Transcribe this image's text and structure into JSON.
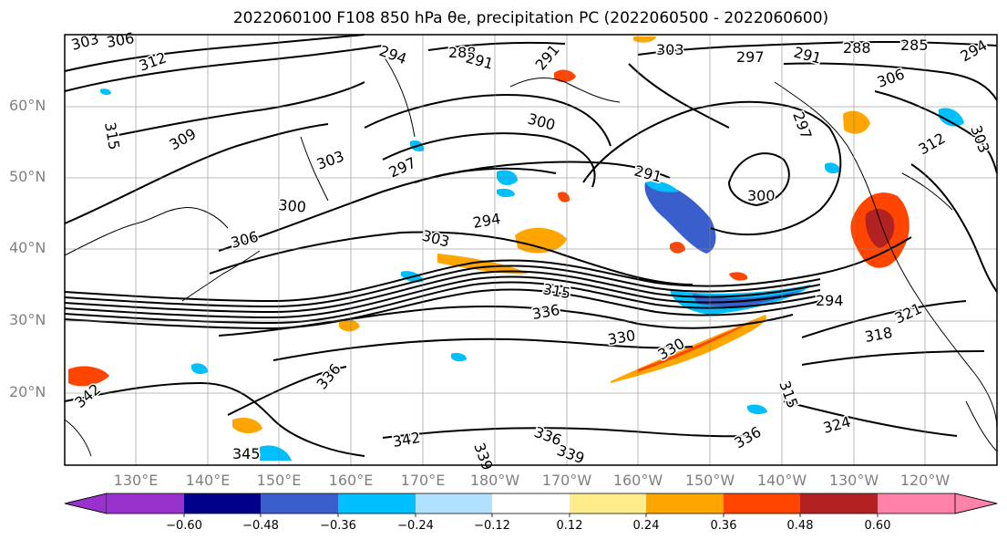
{
  "title": "2022060100 F108 850 hPa θe, precipitation PC (2022060500 - 2022060600)",
  "latitude_labels": [
    "60°N",
    "50°N",
    "40°N",
    "30°N",
    "20°N"
  ],
  "longitude_labels": [
    "130°E",
    "140°E",
    "150°E",
    "160°E",
    "170°E",
    "180°W",
    "170°W",
    "160°W",
    "150°W",
    "140°W",
    "130°W",
    "120°W"
  ],
  "colorbar": {
    "ticks": [
      "−0.60",
      "−0.48",
      "−0.36",
      "−0.24",
      "−0.12",
      "0.12",
      "0.24",
      "0.36",
      "0.48",
      "0.60"
    ],
    "colors": [
      "#9932CC",
      "#00008B",
      "#3A5FCD",
      "#00BFFF",
      "#B0E2FF",
      "#FFFFFF",
      "#FFEC8B",
      "#FFA500",
      "#FF4500",
      "#B22222",
      "#FF82AB"
    ]
  },
  "contour_labels": [
    "303",
    "306",
    "312",
    "315",
    "309",
    "303",
    "300",
    "306",
    "297",
    "294",
    "303",
    "315",
    "336",
    "330",
    "330",
    "321",
    "318",
    "315",
    "324",
    "336",
    "339",
    "342",
    "345",
    "342",
    "336",
    "339",
    "336",
    "288",
    "291",
    "294",
    "285",
    "294",
    "303",
    "297",
    "291",
    "288",
    "306",
    "312",
    "303",
    "300",
    "291",
    "300",
    "297",
    "294",
    "291"
  ]
}
